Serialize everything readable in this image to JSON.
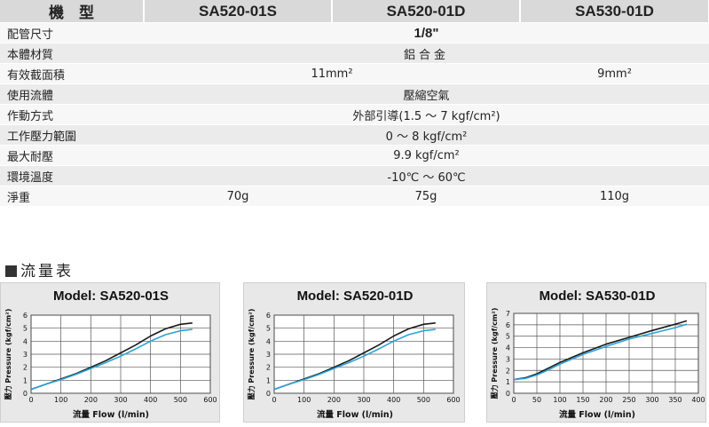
{
  "spec_table": {
    "header": [
      "機　型",
      "SA520-01S",
      "SA520-01D",
      "SA530-01D"
    ],
    "rows": [
      {
        "label": "配管尺寸",
        "value": "1/8\""
      },
      {
        "label": "本體材質",
        "value": "鋁合金"
      },
      {
        "label": "有效截面積",
        "left": "11mm²",
        "right": "9mm²"
      },
      {
        "label": "使用流體",
        "value": "壓縮空氣"
      },
      {
        "label": "作動方式",
        "value": "外部引導(1.5 ～ 7 kgf/cm²)"
      },
      {
        "label": "工作壓力範圍",
        "value": "0 ～ 8 kgf/cm²"
      },
      {
        "label": "最大耐壓",
        "value": "9.9 kgf/cm²"
      },
      {
        "label": "環境溫度",
        "value": "-10℃ ～ 60℃"
      },
      {
        "label": "淨重",
        "values": [
          "70g",
          "75g",
          "110g"
        ]
      }
    ]
  },
  "section_title": "流量表",
  "colors": {
    "series_dark": "#1a1a1a",
    "series_light": "#2aa3d8",
    "grid": "#555555",
    "plot_bg": "#ffffff"
  },
  "chart_data": [
    {
      "type": "line",
      "title": "Model: SA520-01S",
      "xlabel": "流量 Flow (l/min)",
      "ylabel": "壓力 Pressure (kgf/cm²)",
      "xlim": [
        0,
        600
      ],
      "ylim": [
        0,
        6
      ],
      "xticks": [
        0,
        100,
        200,
        300,
        400,
        500,
        600
      ],
      "yticks": [
        0,
        1,
        2,
        3,
        4,
        5,
        6
      ],
      "grid": true,
      "series": [
        {
          "x": [
            0,
            50,
            100,
            150,
            200,
            250,
            300,
            350,
            400,
            450,
            500,
            540
          ],
          "y": [
            0.3,
            0.7,
            1.1,
            1.5,
            2.0,
            2.5,
            3.1,
            3.7,
            4.4,
            4.95,
            5.3,
            5.4
          ]
        },
        {
          "x": [
            0,
            50,
            100,
            150,
            200,
            250,
            300,
            350,
            400,
            450,
            500,
            540
          ],
          "y": [
            0.3,
            0.7,
            1.05,
            1.45,
            1.9,
            2.35,
            2.85,
            3.4,
            4.0,
            4.5,
            4.8,
            4.9
          ]
        }
      ]
    },
    {
      "type": "line",
      "title": "Model: SA520-01D",
      "xlabel": "流量 Flow (l/min)",
      "ylabel": "壓力 Pressure (kgf/cm²)",
      "xlim": [
        0,
        600
      ],
      "ylim": [
        0,
        6
      ],
      "xticks": [
        0,
        100,
        200,
        300,
        400,
        500,
        600
      ],
      "yticks": [
        0,
        1,
        2,
        3,
        4,
        5,
        6
      ],
      "grid": true,
      "series": [
        {
          "x": [
            0,
            50,
            100,
            150,
            200,
            250,
            300,
            350,
            400,
            450,
            500,
            540
          ],
          "y": [
            0.3,
            0.7,
            1.1,
            1.5,
            2.0,
            2.5,
            3.1,
            3.7,
            4.4,
            4.95,
            5.3,
            5.4
          ]
        },
        {
          "x": [
            0,
            50,
            100,
            150,
            200,
            250,
            300,
            350,
            400,
            450,
            500,
            540
          ],
          "y": [
            0.3,
            0.7,
            1.05,
            1.45,
            1.9,
            2.35,
            2.85,
            3.4,
            4.0,
            4.5,
            4.8,
            4.9
          ]
        }
      ]
    },
    {
      "type": "line",
      "title": "Model: SA530-01D",
      "xlabel": "流量 Flow (l/min)",
      "ylabel": "壓力 Pressure (kgf/cm²)",
      "xlim": [
        0,
        400
      ],
      "ylim": [
        0,
        7
      ],
      "xticks": [
        0,
        50,
        100,
        150,
        200,
        250,
        300,
        350,
        400
      ],
      "yticks": [
        0,
        1,
        2,
        3,
        4,
        5,
        6,
        7
      ],
      "grid": true,
      "series": [
        {
          "x": [
            0,
            25,
            50,
            75,
            100,
            150,
            200,
            250,
            300,
            350,
            375
          ],
          "y": [
            1.2,
            1.35,
            1.7,
            2.2,
            2.7,
            3.55,
            4.3,
            4.9,
            5.5,
            6.05,
            6.35
          ]
        },
        {
          "x": [
            0,
            25,
            50,
            75,
            100,
            150,
            200,
            250,
            300,
            350,
            375
          ],
          "y": [
            1.2,
            1.3,
            1.6,
            2.05,
            2.55,
            3.4,
            4.1,
            4.75,
            5.25,
            5.75,
            6.05
          ]
        }
      ]
    }
  ]
}
